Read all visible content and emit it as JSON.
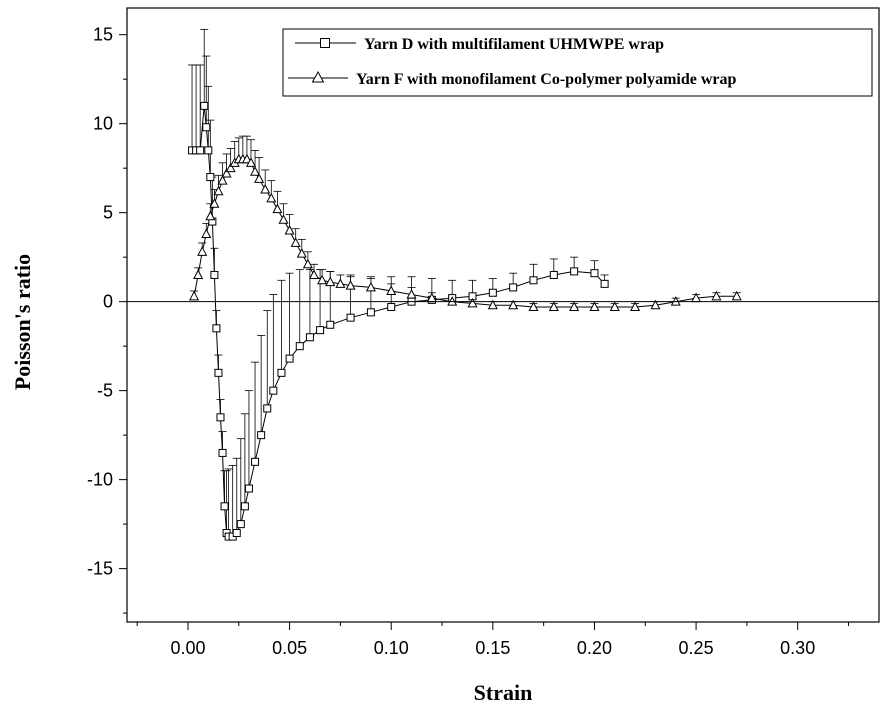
{
  "chart_data": {
    "type": "line",
    "xlabel": "Strain",
    "ylabel": "Poisson's ratio",
    "xlim": [
      -0.03,
      0.34
    ],
    "ylim": [
      -18,
      16.5
    ],
    "x_ticks": [
      0.0,
      0.05,
      0.1,
      0.15,
      0.2,
      0.25,
      0.3
    ],
    "x_tick_labels": [
      "0.00",
      "0.05",
      "0.10",
      "0.15",
      "0.20",
      "0.25",
      "0.30"
    ],
    "y_ticks": [
      -15,
      -10,
      -5,
      0,
      5,
      10,
      15
    ],
    "y_tick_labels": [
      "-15",
      "-10",
      "-5",
      "0",
      "5",
      "10",
      "15"
    ],
    "reference_line_y": 0,
    "legend_position": "top-right",
    "grid": false,
    "series": [
      {
        "name": "Yarn D with multifilament UHMWPE wrap",
        "marker": "square",
        "error_bars": "upper",
        "x": [
          0.002,
          0.004,
          0.006,
          0.008,
          0.009,
          0.01,
          0.011,
          0.012,
          0.013,
          0.014,
          0.015,
          0.016,
          0.017,
          0.018,
          0.019,
          0.02,
          0.022,
          0.024,
          0.026,
          0.028,
          0.03,
          0.033,
          0.036,
          0.039,
          0.042,
          0.046,
          0.05,
          0.055,
          0.06,
          0.065,
          0.07,
          0.08,
          0.09,
          0.1,
          0.11,
          0.12,
          0.13,
          0.14,
          0.15,
          0.16,
          0.17,
          0.18,
          0.19,
          0.2,
          0.205
        ],
        "y": [
          8.5,
          8.5,
          8.5,
          11.0,
          9.8,
          8.5,
          7.0,
          4.5,
          1.5,
          -1.5,
          -4.0,
          -6.5,
          -8.5,
          -11.5,
          -13.0,
          -13.2,
          -13.2,
          -13.0,
          -12.5,
          -11.5,
          -10.5,
          -9.0,
          -7.5,
          -6.0,
          -5.0,
          -4.0,
          -3.2,
          -2.5,
          -2.0,
          -1.6,
          -1.3,
          -0.9,
          -0.6,
          -0.3,
          0.0,
          0.1,
          0.2,
          0.3,
          0.5,
          0.8,
          1.2,
          1.5,
          1.7,
          1.6,
          1.0
        ],
        "err": [
          4.8,
          4.8,
          4.8,
          4.3,
          4.0,
          3.6,
          3.2,
          2.5,
          1.5,
          1.0,
          1.0,
          1.0,
          1.2,
          2.0,
          3.5,
          3.8,
          4.0,
          4.2,
          4.8,
          5.2,
          5.5,
          5.6,
          5.6,
          5.5,
          5.4,
          5.2,
          4.8,
          4.3,
          3.8,
          3.4,
          3.0,
          2.4,
          2.0,
          1.7,
          1.4,
          1.2,
          1.0,
          0.9,
          0.8,
          0.8,
          0.9,
          0.9,
          0.8,
          0.7,
          0.5
        ]
      },
      {
        "name": "Yarn F with monofilament Co-polymer polyamide wrap",
        "marker": "triangle",
        "error_bars": "upper",
        "x": [
          0.003,
          0.005,
          0.007,
          0.009,
          0.011,
          0.013,
          0.015,
          0.017,
          0.019,
          0.021,
          0.023,
          0.025,
          0.027,
          0.029,
          0.031,
          0.033,
          0.035,
          0.038,
          0.041,
          0.044,
          0.047,
          0.05,
          0.053,
          0.056,
          0.059,
          0.062,
          0.066,
          0.07,
          0.075,
          0.08,
          0.09,
          0.1,
          0.11,
          0.12,
          0.13,
          0.14,
          0.15,
          0.16,
          0.17,
          0.18,
          0.19,
          0.2,
          0.21,
          0.22,
          0.23,
          0.24,
          0.25,
          0.26,
          0.27
        ],
        "y": [
          0.3,
          1.5,
          2.8,
          3.8,
          4.8,
          5.5,
          6.2,
          6.8,
          7.2,
          7.5,
          7.8,
          8.0,
          8.0,
          8.0,
          7.8,
          7.3,
          6.9,
          6.3,
          5.8,
          5.2,
          4.6,
          4.0,
          3.3,
          2.7,
          2.1,
          1.5,
          1.2,
          1.1,
          1.0,
          0.9,
          0.8,
          0.6,
          0.4,
          0.2,
          0.0,
          -0.1,
          -0.2,
          -0.2,
          -0.3,
          -0.3,
          -0.3,
          -0.3,
          -0.3,
          -0.3,
          -0.2,
          0.0,
          0.2,
          0.3,
          0.3
        ],
        "err": [
          0.3,
          0.4,
          0.5,
          0.6,
          0.7,
          0.8,
          0.9,
          1.0,
          1.1,
          1.1,
          1.2,
          1.2,
          1.3,
          1.3,
          1.3,
          1.2,
          1.2,
          1.1,
          1.0,
          1.0,
          0.9,
          0.9,
          0.8,
          0.8,
          0.7,
          0.6,
          0.6,
          0.6,
          0.5,
          0.5,
          0.5,
          0.4,
          0.4,
          0.3,
          0.3,
          0.3,
          0.2,
          0.2,
          0.2,
          0.2,
          0.2,
          0.2,
          0.2,
          0.2,
          0.2,
          0.2,
          0.2,
          0.2,
          0.2
        ]
      }
    ]
  }
}
